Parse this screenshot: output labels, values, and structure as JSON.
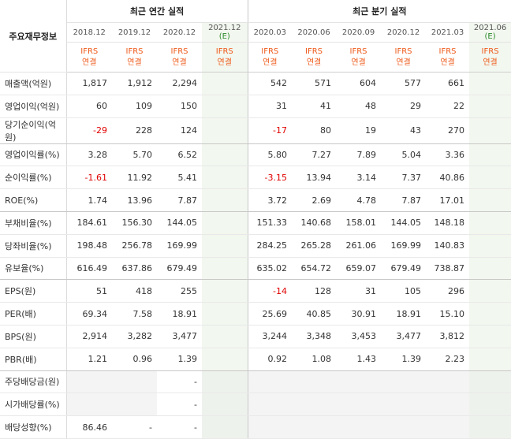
{
  "row_header_label": "주요재무정보",
  "groups": {
    "annual": "최근 연간 실적",
    "quarterly": "최근 분기 실적"
  },
  "periods": [
    "2018.12",
    "2019.12",
    "2020.12",
    "2021.12",
    "2020.03",
    "2020.06",
    "2020.09",
    "2020.12",
    "2021.03",
    "2021.06"
  ],
  "estimate_marker": "(E)",
  "ifrs_top": "IFRS",
  "ifrs_bottom": "연결",
  "rows": [
    {
      "label": "매출액(억원)",
      "values": [
        "1,817",
        "1,912",
        "2,294",
        "",
        "542",
        "571",
        "604",
        "577",
        "661",
        ""
      ]
    },
    {
      "label": "영업이익(억원)",
      "values": [
        "60",
        "109",
        "150",
        "",
        "31",
        "41",
        "48",
        "29",
        "22",
        ""
      ]
    },
    {
      "label": "당기순이익(억원)",
      "values": [
        "-29",
        "228",
        "124",
        "",
        "-17",
        "80",
        "19",
        "43",
        "270",
        ""
      ]
    },
    {
      "label": "영업이익률(%)",
      "values": [
        "3.28",
        "5.70",
        "6.52",
        "",
        "5.80",
        "7.27",
        "7.89",
        "5.04",
        "3.36",
        ""
      ]
    },
    {
      "label": "순이익률(%)",
      "values": [
        "-1.61",
        "11.92",
        "5.41",
        "",
        "-3.15",
        "13.94",
        "3.14",
        "7.37",
        "40.86",
        ""
      ]
    },
    {
      "label": "ROE(%)",
      "values": [
        "1.74",
        "13.96",
        "7.87",
        "",
        "3.72",
        "2.69",
        "4.78",
        "7.87",
        "17.01",
        ""
      ]
    },
    {
      "label": "부채비율(%)",
      "values": [
        "184.61",
        "156.30",
        "144.05",
        "",
        "151.33",
        "140.68",
        "158.01",
        "144.05",
        "148.18",
        ""
      ]
    },
    {
      "label": "당좌비율(%)",
      "values": [
        "198.48",
        "256.78",
        "169.99",
        "",
        "284.25",
        "265.28",
        "261.06",
        "169.99",
        "140.83",
        ""
      ]
    },
    {
      "label": "유보율(%)",
      "values": [
        "616.49",
        "637.86",
        "679.49",
        "",
        "635.02",
        "654.72",
        "659.07",
        "679.49",
        "738.87",
        ""
      ]
    },
    {
      "label": "EPS(원)",
      "values": [
        "51",
        "418",
        "255",
        "",
        "-14",
        "128",
        "31",
        "105",
        "296",
        ""
      ]
    },
    {
      "label": "PER(배)",
      "values": [
        "69.34",
        "7.58",
        "18.91",
        "",
        "25.69",
        "40.85",
        "30.91",
        "18.91",
        "15.10",
        ""
      ]
    },
    {
      "label": "BPS(원)",
      "values": [
        "2,914",
        "3,282",
        "3,477",
        "",
        "3,244",
        "3,348",
        "3,453",
        "3,477",
        "3,812",
        ""
      ]
    },
    {
      "label": "PBR(배)",
      "values": [
        "1.21",
        "0.96",
        "1.39",
        "",
        "0.92",
        "1.08",
        "1.43",
        "1.39",
        "2.23",
        ""
      ]
    },
    {
      "label": "주당배당금(원)",
      "values": [
        "",
        "",
        "-",
        "",
        "",
        "",
        "",
        "",
        "",
        ""
      ]
    },
    {
      "label": "시가배당률(%)",
      "values": [
        "",
        "",
        "-",
        "",
        "",
        "",
        "",
        "",
        "",
        ""
      ]
    },
    {
      "label": "배당성향(%)",
      "values": [
        "86.46",
        "-",
        "-",
        "",
        "",
        "",
        "",
        "",
        "",
        ""
      ]
    }
  ],
  "colors": {
    "negative": "#e00000",
    "ifrs": "#ee5a1a",
    "estimate_bg": "#f2f7ef",
    "estimate_text": "#2b8a2b"
  }
}
